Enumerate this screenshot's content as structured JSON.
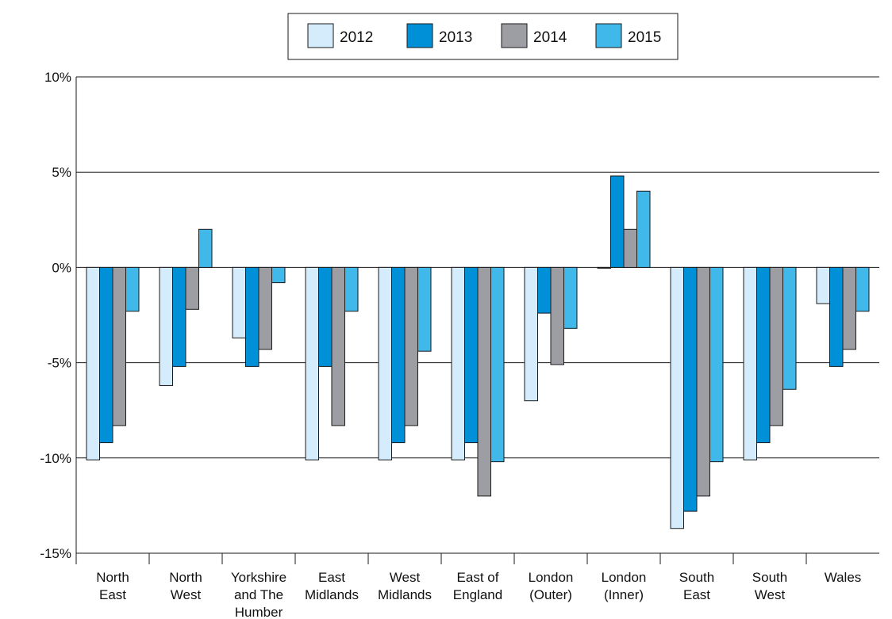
{
  "chart_data": {
    "type": "bar",
    "title": "",
    "xlabel": "",
    "ylabel": "",
    "ylim": [
      -15,
      10
    ],
    "yticks": [
      10,
      5,
      0,
      -5,
      -10,
      -15
    ],
    "ytick_labels": [
      "10%",
      "5%",
      "0%",
      "-5%",
      "-10%",
      "-15%"
    ],
    "grid": "horizontal",
    "legend_position": "top-center",
    "categories": [
      [
        "North",
        "East"
      ],
      [
        "North",
        "West"
      ],
      [
        "Yorkshire",
        "and The",
        "Humber"
      ],
      [
        "East",
        "Midlands"
      ],
      [
        "West",
        "Midlands"
      ],
      [
        "East of",
        "England"
      ],
      [
        "London",
        "(Outer)"
      ],
      [
        "London",
        "(Inner)"
      ],
      [
        "South",
        "East"
      ],
      [
        "South",
        "West"
      ],
      [
        "Wales"
      ]
    ],
    "series": [
      {
        "name": "2012",
        "color": "#d4ecfb",
        "values": [
          -10.1,
          -6.2,
          -3.7,
          -10.1,
          -10.1,
          -10.1,
          -7.0,
          0.0,
          -13.7,
          -10.1,
          -1.9
        ]
      },
      {
        "name": "2013",
        "color": "#0090d8",
        "values": [
          -9.2,
          -5.2,
          -5.2,
          -5.2,
          -9.2,
          -9.2,
          -2.4,
          4.8,
          -12.8,
          -9.2,
          -5.2
        ]
      },
      {
        "name": "2014",
        "color": "#9d9ea4",
        "values": [
          -8.3,
          -2.2,
          -4.3,
          -8.3,
          -8.3,
          -12.0,
          -5.1,
          2.0,
          -12.0,
          -8.3,
          -4.3
        ]
      },
      {
        "name": "2015",
        "color": "#40b8ea",
        "values": [
          -2.3,
          2.0,
          -0.8,
          -2.3,
          -4.4,
          -10.2,
          -3.2,
          4.0,
          -10.2,
          -6.4,
          -2.3
        ]
      }
    ]
  }
}
